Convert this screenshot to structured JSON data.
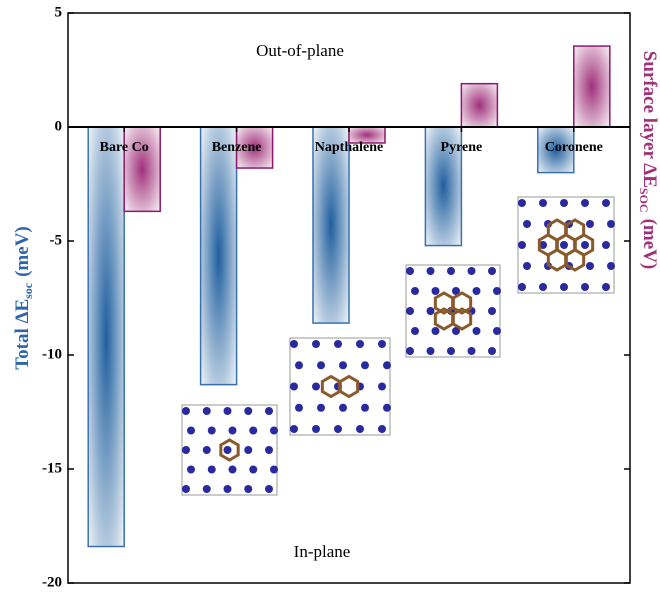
{
  "chart_data": {
    "type": "bar",
    "y_label": "Total ΔE",
    "y_label_sub": "soc",
    "y_label_unit": "(meV)",
    "y2_label": "Surface layer ΔE",
    "y2_label_sub": "SOC",
    "y2_label_unit": "(meV)",
    "annotations": [
      "Out-of-plane",
      "In-plane"
    ],
    "categories": [
      "Bare Co",
      "Benzene",
      "Napthalene",
      "Pyrene",
      "Coronene"
    ],
    "series": [
      {
        "color": "#1f5f9e",
        "values": [
          -18.4,
          -11.3,
          -8.6,
          -5.2,
          -2.0
        ]
      },
      {
        "color": "#a0307a",
        "values": [
          -3.7,
          -1.8,
          -0.7,
          1.9,
          3.55
        ]
      }
    ],
    "ylim": [
      -20,
      5
    ],
    "yticks": [
      5,
      0,
      -5,
      -10,
      -15,
      -20
    ]
  }
}
